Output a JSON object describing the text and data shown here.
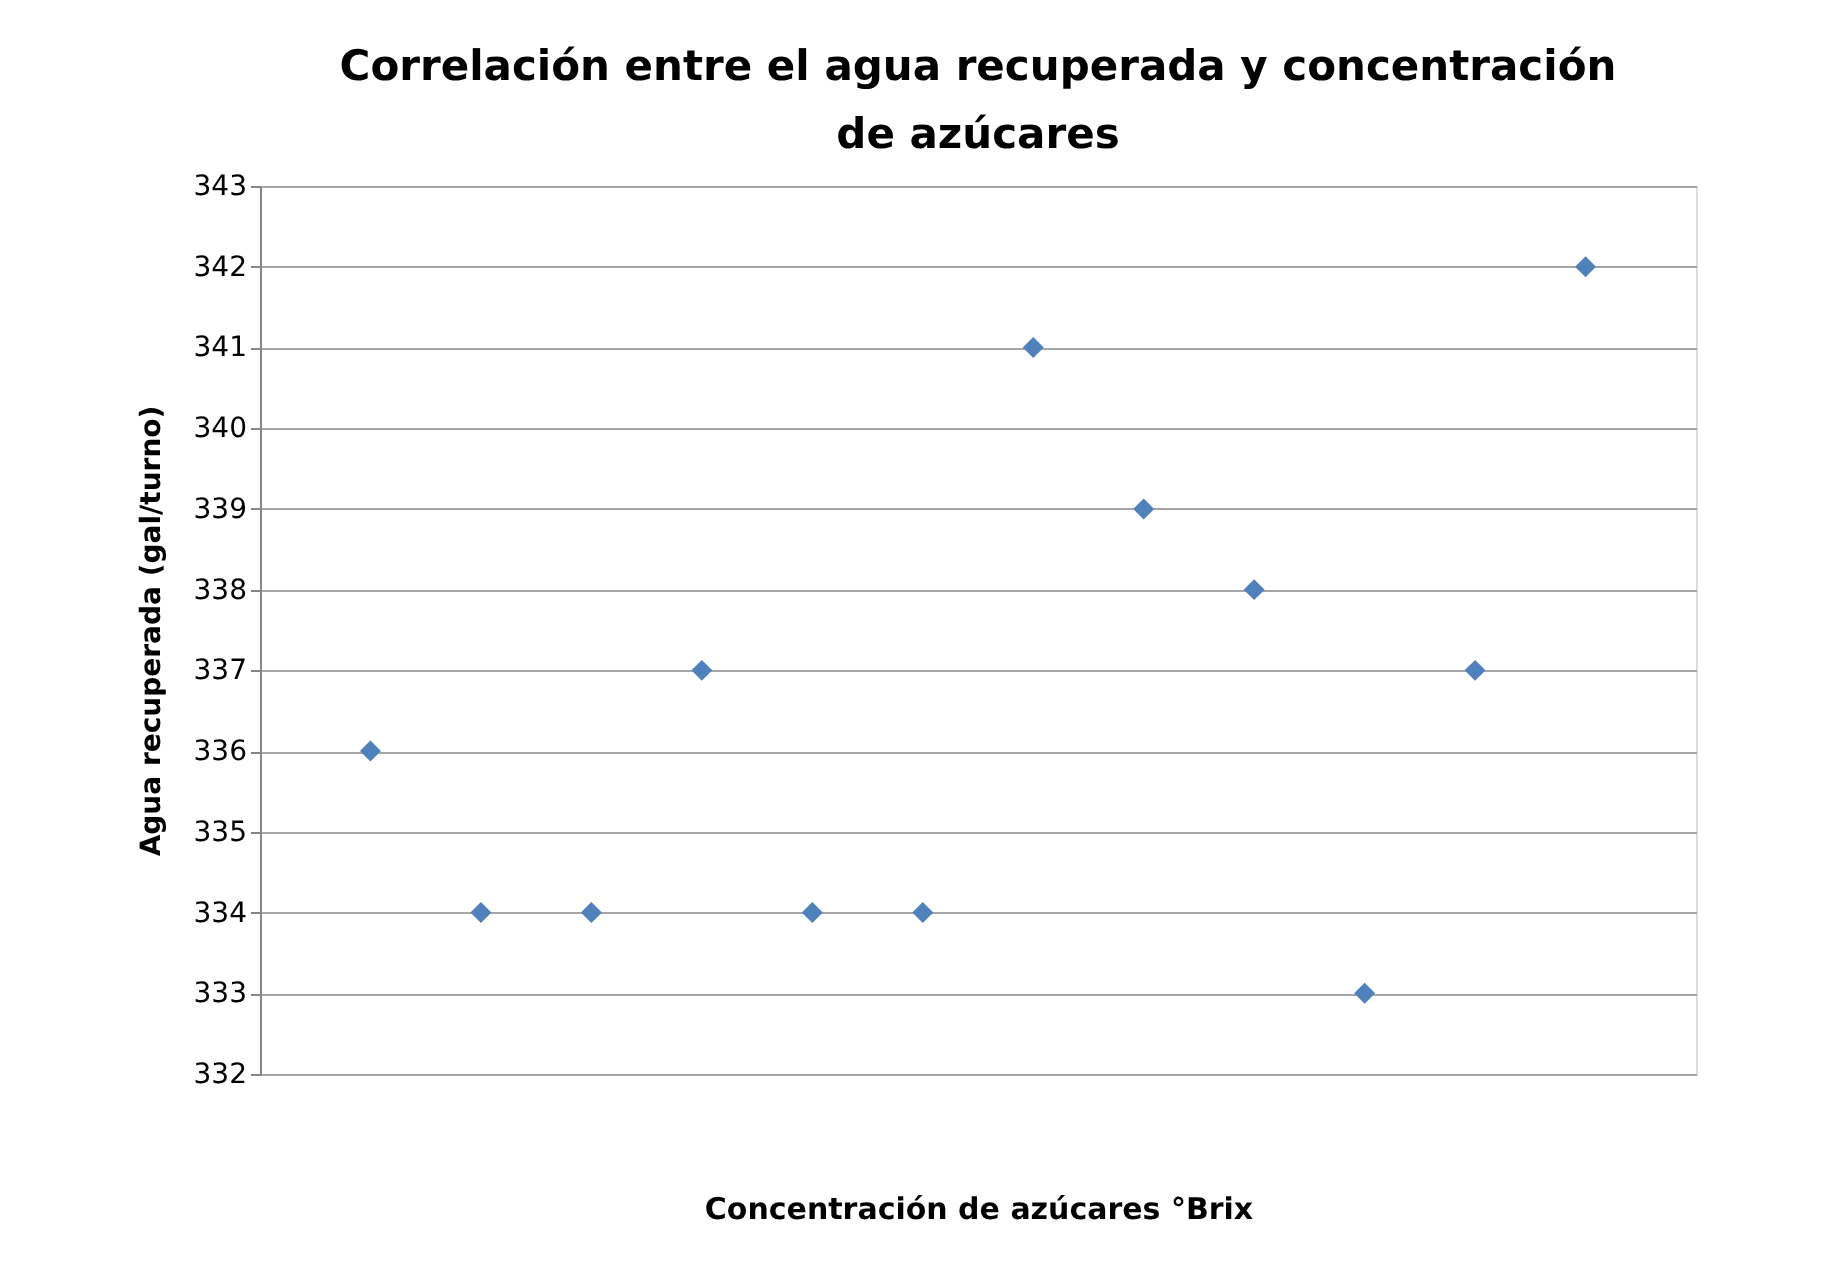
{
  "chart_data": {
    "type": "scatter",
    "title": "Correlación entre el agua recuperada y concentración de azúcares",
    "xlabel": "Concentración de azúcares °Brix",
    "ylabel": "Agua recuperada (gal/turno)",
    "categories": [
      null,
      null,
      null,
      null,
      null,
      null,
      null,
      null,
      null,
      null,
      null,
      null
    ],
    "values": [
      336,
      334,
      334,
      337,
      334,
      334,
      341,
      339,
      338,
      333,
      337,
      342
    ],
    "color": "#4f81bd",
    "marker": "diamond",
    "ylim": [
      332,
      343
    ],
    "yticks": [
      332,
      333,
      334,
      335,
      336,
      337,
      338,
      339,
      340,
      341,
      342,
      343
    ],
    "grid": "y"
  }
}
